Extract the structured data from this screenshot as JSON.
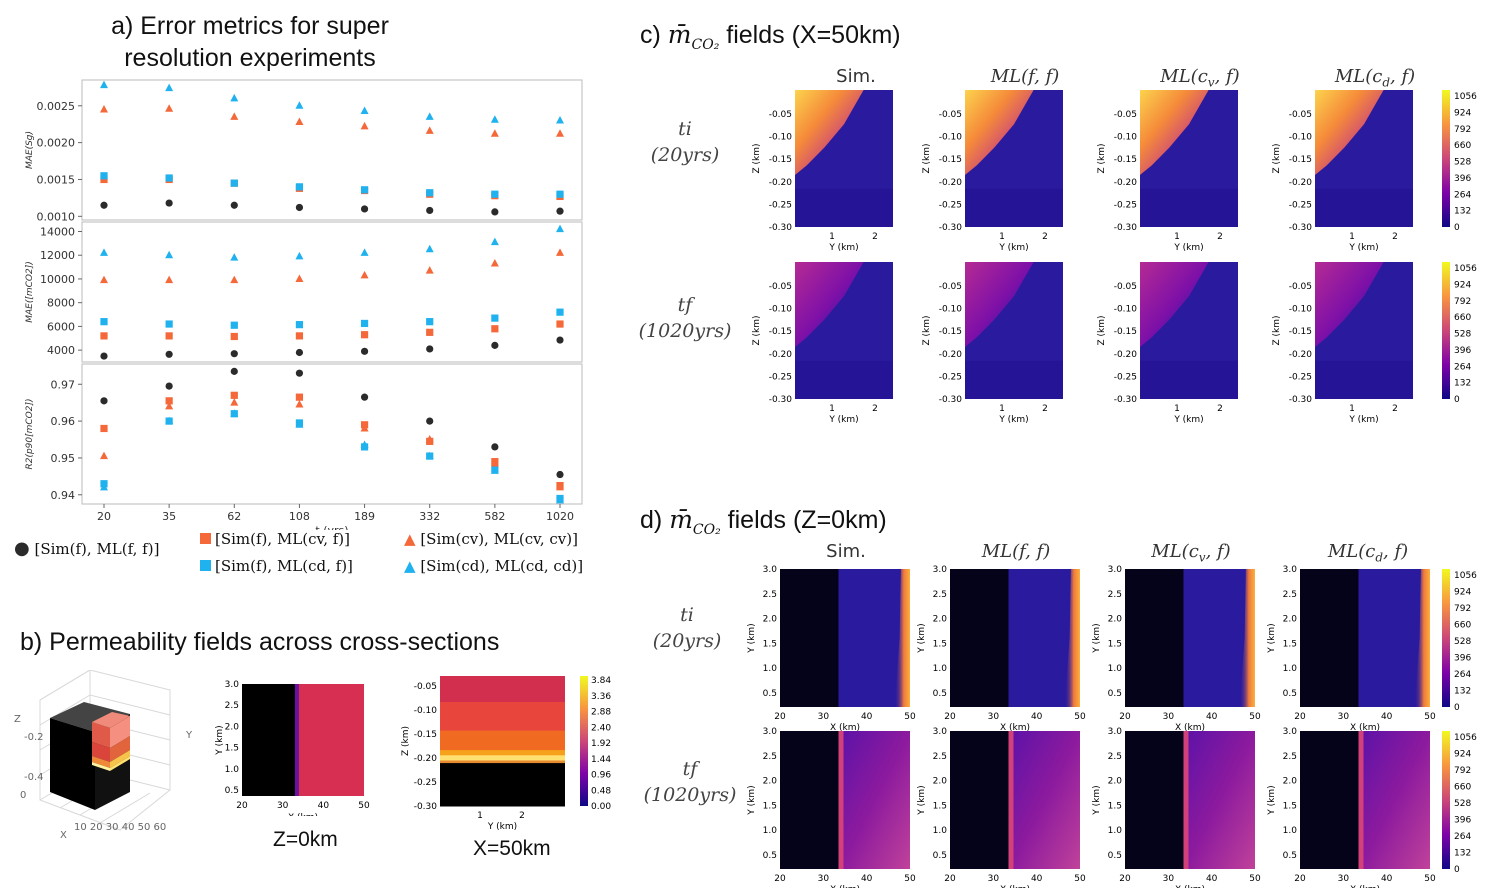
{
  "titles": {
    "a": "a)  Error metrics for super resolution experiments",
    "b": "b) Permeability fields across cross-sections",
    "c": "c) m̄CO₂ fields (X=50km)",
    "d": "d) m̄CO₂ fields (Z=0km)"
  },
  "chart_data": [
    {
      "type": "scatter",
      "panel": "a-top",
      "ylabel": "MAE(Sg)",
      "xlabel": "",
      "categories": [
        "20",
        "35",
        "62",
        "108",
        "189",
        "332",
        "582",
        "1020"
      ],
      "ylim": [
        0.00095,
        0.00285
      ],
      "yticks": [
        0.001,
        0.0015,
        0.002,
        0.0025
      ],
      "yticklabels": [
        "0.0010",
        "0.0015",
        "0.0020",
        "0.0025"
      ],
      "series": [
        {
          "name": "[Sim(f), ML(f,f)]",
          "marker": "circle",
          "color": "#2b2b2b",
          "values": [
            0.00115,
            0.00118,
            0.00115,
            0.00112,
            0.0011,
            0.00108,
            0.00106,
            0.00107
          ]
        },
        {
          "name": "[Sim(f), ML(cv,f)]",
          "marker": "square",
          "color": "#f4683a",
          "values": [
            0.0015,
            0.0015,
            0.00145,
            0.00138,
            0.00135,
            0.0013,
            0.00128,
            0.00127
          ]
        },
        {
          "name": "[Sim(f), ML(cd,f)]",
          "marker": "square",
          "color": "#1fb2ee",
          "values": [
            0.00155,
            0.00152,
            0.00145,
            0.0014,
            0.00136,
            0.00132,
            0.0013,
            0.0013
          ]
        },
        {
          "name": "[Sim(cv), ML(cv,cv)]",
          "marker": "triangle",
          "color": "#f4683a",
          "values": [
            0.00245,
            0.00246,
            0.00235,
            0.00228,
            0.00222,
            0.00216,
            0.00212,
            0.00212
          ]
        },
        {
          "name": "[Sim(cd), ML(cd,cd)]",
          "marker": "triangle",
          "color": "#1fb2ee",
          "values": [
            0.00278,
            0.00274,
            0.0026,
            0.0025,
            0.00243,
            0.00235,
            0.00231,
            0.0023
          ]
        }
      ]
    },
    {
      "type": "scatter",
      "panel": "a-mid",
      "ylabel": "MAE([mCO2])",
      "xlabel": "",
      "categories": [
        "20",
        "35",
        "62",
        "108",
        "189",
        "332",
        "582",
        "1020"
      ],
      "ylim": [
        3000,
        14800
      ],
      "yticks": [
        4000,
        6000,
        8000,
        10000,
        12000,
        14000
      ],
      "yticklabels": [
        "4000",
        "6000",
        "8000",
        "10000",
        "12000",
        "14000"
      ],
      "series": [
        {
          "name": "[Sim(f), ML(f,f)]",
          "marker": "circle",
          "color": "#2b2b2b",
          "values": [
            3500,
            3650,
            3700,
            3800,
            3900,
            4100,
            4400,
            4850
          ]
        },
        {
          "name": "[Sim(f), ML(cv,f)]",
          "marker": "square",
          "color": "#f4683a",
          "values": [
            5200,
            5200,
            5150,
            5200,
            5300,
            5500,
            5800,
            6200
          ]
        },
        {
          "name": "[Sim(f), ML(cd,f)]",
          "marker": "square",
          "color": "#1fb2ee",
          "values": [
            6400,
            6200,
            6100,
            6150,
            6250,
            6400,
            6700,
            7200
          ]
        },
        {
          "name": "[Sim(cv), ML(cv,cv)]",
          "marker": "triangle",
          "color": "#f4683a",
          "values": [
            9900,
            9900,
            9900,
            10000,
            10300,
            10700,
            11300,
            12200
          ]
        },
        {
          "name": "[Sim(cd), ML(cd,cd)]",
          "marker": "triangle",
          "color": "#1fb2ee",
          "values": [
            12200,
            12000,
            11800,
            11900,
            12200,
            12500,
            13100,
            14200
          ]
        }
      ]
    },
    {
      "type": "scatter",
      "panel": "a-bottom",
      "ylabel": "R2(p90[mCO2])",
      "xlabel": "t (yrs)",
      "categories": [
        "20",
        "35",
        "62",
        "108",
        "189",
        "332",
        "582",
        "1020"
      ],
      "ylim": [
        0.9375,
        0.9755
      ],
      "yticks": [
        0.94,
        0.95,
        0.96,
        0.97
      ],
      "yticklabels": [
        "0.94",
        "0.95",
        "0.96",
        "0.97"
      ],
      "series": [
        {
          "name": "[Sim(f), ML(f,f)]",
          "marker": "circle",
          "color": "#2b2b2b",
          "values": [
            0.9655,
            0.9695,
            0.9735,
            0.973,
            0.9665,
            0.96,
            0.953,
            0.9455
          ]
        },
        {
          "name": "[Sim(f), ML(cv,f)]",
          "marker": "square",
          "color": "#f4683a",
          "values": [
            0.958,
            0.9655,
            0.967,
            0.9665,
            0.959,
            0.9545,
            0.949,
            0.9425
          ]
        },
        {
          "name": "[Sim(f), ML(cd,f)]",
          "marker": "square",
          "color": "#1fb2ee",
          "values": [
            0.943,
            0.96,
            0.962,
            0.9595,
            0.953,
            0.9505,
            0.947,
            0.939
          ]
        },
        {
          "name": "[Sim(cv), ML(cv,cv)]",
          "marker": "triangle",
          "color": "#f4683a",
          "values": [
            0.9505,
            0.964,
            0.965,
            0.9645,
            0.958,
            0.955,
            0.9485,
            0.942
          ]
        },
        {
          "name": "[Sim(cd), ML(cd,cd)]",
          "marker": "triangle",
          "color": "#1fb2ee",
          "values": [
            0.942,
            0.96,
            0.962,
            0.959,
            0.9535,
            0.9505,
            0.9465,
            0.9385
          ]
        }
      ]
    },
    {
      "type": "heatmap",
      "panel": "b-z0",
      "xlabel": "X (km)",
      "ylabel": "Y (km)",
      "xticks": [
        "20",
        "30",
        "40",
        "50"
      ],
      "yticks": [
        "0.5",
        "1.0",
        "1.5",
        "2.0",
        "2.5",
        "3.0"
      ],
      "caption": "Z=0km"
    },
    {
      "type": "heatmap",
      "panel": "b-x50",
      "xlabel": "Y (km)",
      "ylabel": "Z (km)",
      "xticks": [
        "1",
        "2"
      ],
      "yticks": [
        "-0.05",
        "-0.10",
        "-0.15",
        "-0.20",
        "-0.25",
        "-0.30"
      ],
      "colorbar": [
        "3.84",
        "3.36",
        "2.88",
        "2.40",
        "1.92",
        "1.44",
        "0.96",
        "0.48",
        "0.00"
      ],
      "caption": "X=50km"
    },
    {
      "type": "heatmap",
      "panel": "c",
      "columns": [
        "Sim.",
        "ML(f, f)",
        "ML(cv, f)",
        "ML(cd, f)"
      ],
      "rows": [
        "ti (20yrs)",
        "tf (1020yrs)"
      ],
      "xlabel": "Y (km)",
      "ylabel": "Z (km)",
      "xticks": [
        "1",
        "2"
      ],
      "yticks": [
        "-0.05",
        "-0.10",
        "-0.15",
        "-0.20",
        "-0.25",
        "-0.30"
      ],
      "colorbar": [
        "1056",
        "924",
        "792",
        "660",
        "528",
        "396",
        "264",
        "132",
        "0"
      ]
    },
    {
      "type": "heatmap",
      "panel": "d",
      "columns": [
        "Sim.",
        "ML(f, f)",
        "ML(cv, f)",
        "ML(cd, f)"
      ],
      "rows": [
        "ti (20yrs)",
        "tf (1020yrs)"
      ],
      "xlabel": "X (km)",
      "ylabel": "Y (km)",
      "xticks": [
        "20",
        "30",
        "40",
        "50"
      ],
      "yticks": [
        "0.5",
        "1.0",
        "1.5",
        "2.0",
        "2.5",
        "3.0"
      ],
      "colorbar": [
        "1056",
        "924",
        "792",
        "660",
        "528",
        "396",
        "264",
        "132",
        "0"
      ]
    }
  ],
  "legend": {
    "item1": "[Sim(f), ML(f, f)]",
    "item2": "[Sim(f), ML(cv, f)]",
    "item3": "[Sim(f), ML(cd, f)]",
    "item4": "[Sim(cv), ML(cv, cv)]",
    "item5": "[Sim(cd), ML(cd, cd)]"
  },
  "labels": {
    "ti_1": "ti",
    "ti_2": "(20yrs)",
    "tf_1": "tf",
    "tf_2": "(1020yrs)",
    "cube_z": "Z",
    "cube_x": "X",
    "cube_y": "Y"
  },
  "colors": {
    "black": "#2b2b2b",
    "orange": "#f4683a",
    "cyan": "#1fb2ee",
    "field_dark": "#0d0887",
    "field_bg": "#2a1a9e"
  }
}
